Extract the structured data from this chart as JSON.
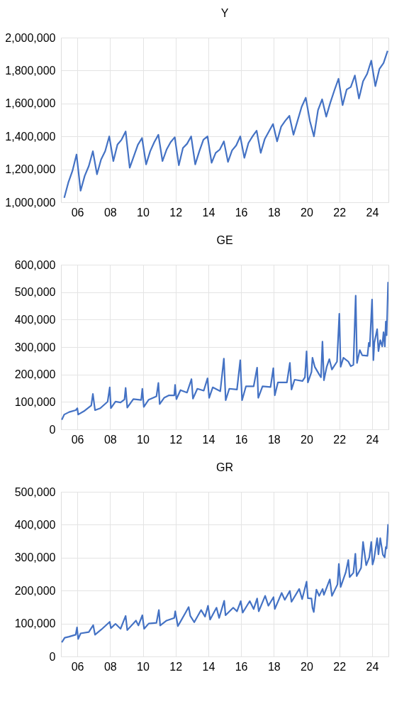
{
  "chart_data": [
    {
      "type": "line",
      "title": "Y",
      "grid": true,
      "xlim": [
        2005.0,
        2025.0
      ],
      "xticks": [
        {
          "value": 2006,
          "label": "06"
        },
        {
          "value": 2008,
          "label": "08"
        },
        {
          "value": 2010,
          "label": "10"
        },
        {
          "value": 2012,
          "label": "12"
        },
        {
          "value": 2014,
          "label": "14"
        },
        {
          "value": 2016,
          "label": "16"
        },
        {
          "value": 2018,
          "label": "18"
        },
        {
          "value": 2020,
          "label": "20"
        },
        {
          "value": 2022,
          "label": "22"
        },
        {
          "value": 2024,
          "label": "24"
        }
      ],
      "ylim": [
        1000000,
        2000000
      ],
      "yticks": [
        {
          "value": 1000000,
          "label": "1,000,000"
        },
        {
          "value": 1200000,
          "label": "1,200,000"
        },
        {
          "value": 1400000,
          "label": "1,400,000"
        },
        {
          "value": 1600000,
          "label": "1,600,000"
        },
        {
          "value": 1800000,
          "label": "1,800,000"
        },
        {
          "value": 2000000,
          "label": "2,000,000"
        }
      ],
      "series": [
        {
          "color": "#4472c4",
          "x": [
            2005.2,
            2005.45,
            2005.7,
            2005.95,
            2006.2,
            2006.45,
            2006.7,
            2006.95,
            2007.2,
            2007.45,
            2007.7,
            2007.95,
            2008.2,
            2008.45,
            2008.7,
            2008.95,
            2009.2,
            2009.45,
            2009.7,
            2009.95,
            2010.2,
            2010.45,
            2010.7,
            2010.95,
            2011.2,
            2011.45,
            2011.7,
            2011.95,
            2012.2,
            2012.45,
            2012.7,
            2012.95,
            2013.2,
            2013.45,
            2013.7,
            2013.95,
            2014.2,
            2014.45,
            2014.7,
            2014.95,
            2015.2,
            2015.45,
            2015.7,
            2015.95,
            2016.2,
            2016.45,
            2016.7,
            2016.95,
            2017.2,
            2017.45,
            2017.7,
            2017.95,
            2018.2,
            2018.45,
            2018.7,
            2018.95,
            2019.2,
            2019.45,
            2019.7,
            2019.95,
            2020.2,
            2020.45,
            2020.7,
            2020.95,
            2021.2,
            2021.45,
            2021.7,
            2021.95,
            2022.2,
            2022.45,
            2022.7,
            2022.95,
            2023.2,
            2023.45,
            2023.7,
            2023.95,
            2024.2,
            2024.45,
            2024.7,
            2024.95
          ],
          "values": [
            1027000,
            1120000,
            1190000,
            1290000,
            1070000,
            1160000,
            1220000,
            1310000,
            1170000,
            1260000,
            1310000,
            1400000,
            1250000,
            1350000,
            1380000,
            1430000,
            1210000,
            1280000,
            1350000,
            1390000,
            1230000,
            1310000,
            1365000,
            1410000,
            1250000,
            1320000,
            1365000,
            1395000,
            1225000,
            1330000,
            1355000,
            1400000,
            1230000,
            1310000,
            1380000,
            1400000,
            1240000,
            1300000,
            1320000,
            1370000,
            1245000,
            1315000,
            1345000,
            1400000,
            1270000,
            1360000,
            1400000,
            1435000,
            1300000,
            1385000,
            1430000,
            1475000,
            1370000,
            1460000,
            1495000,
            1525000,
            1410000,
            1495000,
            1580000,
            1635000,
            1495000,
            1400000,
            1560000,
            1625000,
            1520000,
            1605000,
            1680000,
            1750000,
            1590000,
            1685000,
            1700000,
            1770000,
            1630000,
            1735000,
            1780000,
            1860000,
            1705000,
            1810000,
            1845000,
            1920000
          ]
        }
      ]
    },
    {
      "type": "line",
      "title": "GE",
      "grid": true,
      "xlim": [
        2005.0,
        2025.0
      ],
      "xticks": [
        {
          "value": 2006,
          "label": "06"
        },
        {
          "value": 2008,
          "label": "08"
        },
        {
          "value": 2010,
          "label": "10"
        },
        {
          "value": 2012,
          "label": "12"
        },
        {
          "value": 2014,
          "label": "14"
        },
        {
          "value": 2016,
          "label": "16"
        },
        {
          "value": 2018,
          "label": "18"
        },
        {
          "value": 2020,
          "label": "20"
        },
        {
          "value": 2022,
          "label": "22"
        },
        {
          "value": 2024,
          "label": "24"
        }
      ],
      "ylim": [
        0,
        600000
      ],
      "yticks": [
        0,
        {
          "value": 100000,
          "label": "100,000"
        },
        {
          "value": 200000,
          "label": "200,000"
        },
        {
          "value": 300000,
          "label": "300,000"
        },
        {
          "value": 400000,
          "label": "400,000"
        },
        {
          "value": 500000,
          "label": "500,000"
        },
        {
          "value": 600000,
          "label": "600,000"
        }
      ],
      "series": [
        {
          "color": "#4472c4",
          "x": [
            2005.05,
            2005.2,
            2005.5,
            2005.9,
            2006.0,
            2006.05,
            2006.45,
            2006.85,
            2006.95,
            2007.08,
            2007.4,
            2007.85,
            2007.98,
            2008.05,
            2008.33,
            2008.64,
            2008.88,
            2008.95,
            2009.05,
            2009.42,
            2009.9,
            2009.97,
            2010.06,
            2010.36,
            2010.83,
            2010.95,
            2011.03,
            2011.3,
            2011.6,
            2011.92,
            2011.97,
            2012.05,
            2012.3,
            2012.7,
            2012.97,
            2013.06,
            2013.33,
            2013.72,
            2013.95,
            2014.05,
            2014.27,
            2014.73,
            2014.95,
            2015.06,
            2015.28,
            2015.75,
            2015.95,
            2016.06,
            2016.3,
            2016.77,
            2016.98,
            2017.05,
            2017.31,
            2017.8,
            2017.97,
            2018.06,
            2018.25,
            2018.8,
            2018.98,
            2019.08,
            2019.27,
            2019.75,
            2019.9,
            2020.0,
            2020.08,
            2020.3,
            2020.36,
            2020.5,
            2020.77,
            2020.88,
            2020.97,
            2021.06,
            2021.23,
            2021.39,
            2021.55,
            2021.86,
            2022.0,
            2022.08,
            2022.25,
            2022.55,
            2022.7,
            2022.86,
            2023.0,
            2023.08,
            2023.25,
            2023.4,
            2023.72,
            2023.8,
            2023.86,
            2024.0,
            2024.08,
            2024.14,
            2024.31,
            2024.39,
            2024.5,
            2024.62,
            2024.7,
            2024.78,
            2024.84,
            2024.89,
            2024.98
          ],
          "values": [
            35000,
            54000,
            63000,
            70000,
            77000,
            54000,
            68000,
            87000,
            129000,
            70000,
            77000,
            101000,
            153000,
            77000,
            101000,
            98000,
            109000,
            151000,
            79000,
            110000,
            107000,
            148000,
            82000,
            108000,
            120000,
            169000,
            92000,
            115000,
            124000,
            124000,
            162000,
            110000,
            143000,
            134000,
            183000,
            112000,
            148000,
            141000,
            186000,
            115000,
            153000,
            139000,
            258000,
            106000,
            148000,
            145000,
            252000,
            106000,
            157000,
            157000,
            225000,
            115000,
            157000,
            154000,
            223000,
            124000,
            171000,
            171000,
            242000,
            145000,
            181000,
            176000,
            190000,
            284000,
            171000,
            209000,
            261000,
            228000,
            200000,
            190000,
            320000,
            179000,
            228000,
            256000,
            218000,
            247000,
            421000,
            228000,
            261000,
            247000,
            230000,
            235000,
            487000,
            242000,
            289000,
            270000,
            268000,
            315000,
            303000,
            473000,
            252000,
            316000,
            365000,
            285000,
            325000,
            302000,
            354000,
            302000,
            393000,
            343000,
            537000
          ]
        }
      ]
    },
    {
      "type": "line",
      "title": "GR",
      "grid": true,
      "xlim": [
        2005.0,
        2025.0
      ],
      "xticks": [
        {
          "value": 2006,
          "label": "06"
        },
        {
          "value": 2008,
          "label": "08"
        },
        {
          "value": 2010,
          "label": "10"
        },
        {
          "value": 2012,
          "label": "12"
        },
        {
          "value": 2014,
          "label": "14"
        },
        {
          "value": 2016,
          "label": "16"
        },
        {
          "value": 2018,
          "label": "18"
        },
        {
          "value": 2020,
          "label": "20"
        },
        {
          "value": 2022,
          "label": "22"
        },
        {
          "value": 2024,
          "label": "24"
        }
      ],
      "ylim": [
        0,
        500000
      ],
      "yticks": [
        0,
        {
          "value": 100000,
          "label": "100,000"
        },
        {
          "value": 200000,
          "label": "200,000"
        },
        {
          "value": 300000,
          "label": "300,000"
        },
        {
          "value": 400000,
          "label": "400,000"
        },
        {
          "value": 500000,
          "label": "500,000"
        }
      ],
      "series": [
        {
          "color": "#4472c4",
          "x": [
            2005.05,
            2005.23,
            2005.5,
            2005.9,
            2005.98,
            2006.05,
            2006.2,
            2006.7,
            2006.97,
            2007.08,
            2007.47,
            2007.98,
            2008.05,
            2008.33,
            2008.64,
            2008.95,
            2009.05,
            2009.58,
            2009.73,
            2009.97,
            2010.08,
            2010.36,
            2010.83,
            2010.98,
            2011.06,
            2011.45,
            2011.92,
            2011.98,
            2012.14,
            2012.61,
            2012.8,
            2012.9,
            2013.14,
            2013.56,
            2013.8,
            2013.98,
            2014.11,
            2014.5,
            2014.66,
            2014.97,
            2015.05,
            2015.52,
            2015.75,
            2015.98,
            2016.1,
            2016.53,
            2016.77,
            2016.98,
            2017.08,
            2017.47,
            2017.67,
            2017.98,
            2018.06,
            2018.48,
            2018.67,
            2018.98,
            2019.08,
            2019.55,
            2019.73,
            2020.0,
            2020.08,
            2020.3,
            2020.36,
            2020.44,
            2020.6,
            2020.77,
            2020.98,
            2021.06,
            2021.42,
            2021.55,
            2021.89,
            2021.97,
            2022.08,
            2022.39,
            2022.55,
            2022.63,
            2022.86,
            2022.98,
            2023.06,
            2023.33,
            2023.45,
            2023.64,
            2023.83,
            2023.95,
            2024.03,
            2024.11,
            2024.31,
            2024.39,
            2024.5,
            2024.66,
            2024.77,
            2024.84,
            2024.89,
            2024.98
          ],
          "values": [
            43000,
            57000,
            60000,
            66000,
            88000,
            53000,
            70000,
            74000,
            95000,
            66000,
            82000,
            105000,
            86000,
            99000,
            84000,
            123000,
            80000,
            109000,
            94000,
            125000,
            84000,
            100000,
            102000,
            141000,
            94000,
            109000,
            117000,
            137000,
            92000,
            133000,
            150000,
            123000,
            104000,
            141000,
            121000,
            154000,
            112000,
            148000,
            117000,
            169000,
            125000,
            148000,
            137000,
            168000,
            133000,
            168000,
            144000,
            176000,
            137000,
            184000,
            154000,
            180000,
            144000,
            193000,
            172000,
            199000,
            166000,
            205000,
            174000,
            227000,
            177000,
            176000,
            148000,
            135000,
            203000,
            184000,
            205000,
            187000,
            234000,
            184000,
            219000,
            281000,
            211000,
            255000,
            293000,
            241000,
            254000,
            312000,
            244000,
            269000,
            348000,
            277000,
            301000,
            348000,
            279000,
            293000,
            359000,
            310000,
            359000,
            309000,
            301000,
            332000,
            328000,
            402000
          ]
        }
      ]
    }
  ]
}
